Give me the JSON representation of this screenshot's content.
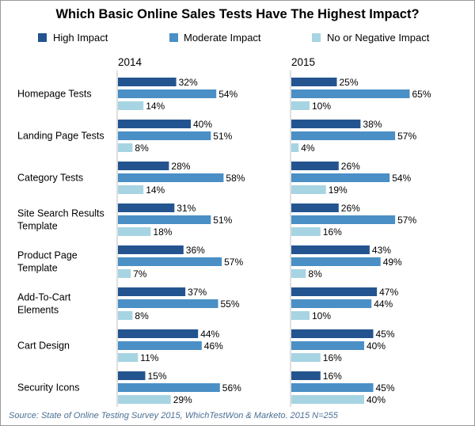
{
  "chart_data": {
    "type": "bar",
    "orientation": "horizontal",
    "title": "Which Basic Online Sales Tests Have The Highest Impact?",
    "source": "Source: State of Online Testing Survey 2015, WhichTestWon & Marketo.   2015 N=255",
    "legend": [
      {
        "name": "High Impact",
        "color": "#23548f"
      },
      {
        "name": "Moderate Impact",
        "color": "#4a8fc5"
      },
      {
        "name": "No or Negative Impact",
        "color": "#a7d4e2"
      }
    ],
    "categories": [
      [
        "Homepage Tests"
      ],
      [
        "Landing Page Tests"
      ],
      [
        "Category Tests"
      ],
      [
        "Site Search Results",
        "Template"
      ],
      [
        "Product Page",
        "Template"
      ],
      [
        "Add-To-Cart",
        "Elements"
      ],
      [
        "Cart Design"
      ],
      [
        "Security Icons"
      ]
    ],
    "panels": [
      {
        "year": "2014",
        "series": [
          {
            "name": "High Impact",
            "values": [
              32,
              40,
              28,
              31,
              36,
              37,
              44,
              15
            ]
          },
          {
            "name": "Moderate Impact",
            "values": [
              54,
              51,
              58,
              51,
              57,
              55,
              46,
              56
            ]
          },
          {
            "name": "No or Negative Impact",
            "values": [
              14,
              8,
              14,
              18,
              7,
              8,
              11,
              29
            ]
          }
        ]
      },
      {
        "year": "2015",
        "series": [
          {
            "name": "High Impact",
            "values": [
              25,
              38,
              26,
              26,
              43,
              47,
              45,
              16
            ]
          },
          {
            "name": "Moderate Impact",
            "values": [
              65,
              57,
              54,
              57,
              49,
              44,
              40,
              45
            ]
          },
          {
            "name": "No or Negative Impact",
            "values": [
              10,
              4,
              19,
              16,
              8,
              10,
              16,
              40
            ]
          }
        ]
      }
    ],
    "value_suffix": "%"
  }
}
